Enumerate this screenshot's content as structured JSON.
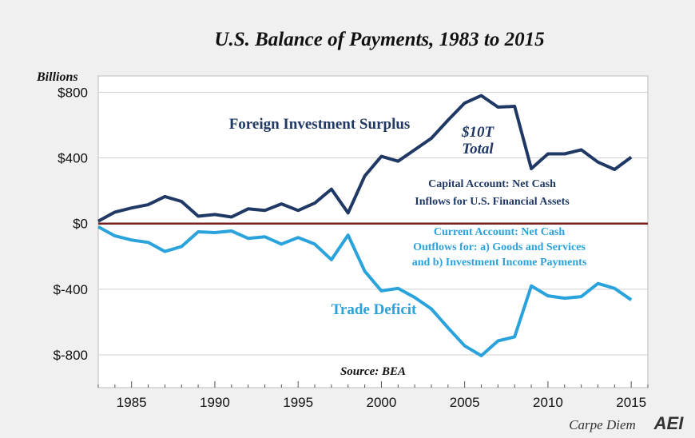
{
  "chart_data": {
    "type": "line",
    "title": "U.S. Balance of Payments, 1983 to 2015",
    "ylabel": "Billions",
    "xlabel": "",
    "ylim": [
      -1000,
      900
    ],
    "xlim": [
      1983,
      2016
    ],
    "yticks": [
      800,
      400,
      0,
      -400,
      -800
    ],
    "ytick_labels": [
      "$800",
      "$400",
      "$0",
      "$-400",
      "$-800"
    ],
    "xticks": [
      1985,
      1990,
      1995,
      2000,
      2005,
      2010,
      2015
    ],
    "xtick_labels": [
      "1985",
      "1990",
      "1995",
      "2000",
      "2005",
      "2010",
      "2015"
    ],
    "grid": true,
    "x": [
      1983,
      1984,
      1985,
      1986,
      1987,
      1988,
      1989,
      1990,
      1991,
      1992,
      1993,
      1994,
      1995,
      1996,
      1997,
      1998,
      1999,
      2000,
      2001,
      2002,
      2003,
      2004,
      2005,
      2006,
      2007,
      2008,
      2009,
      2010,
      2011,
      2012,
      2013,
      2014,
      2015
    ],
    "series": [
      {
        "name": "Foreign Investment Surplus",
        "color": "#1f3864",
        "values": [
          15,
          70,
          95,
          115,
          165,
          135,
          45,
          55,
          40,
          90,
          80,
          120,
          80,
          125,
          210,
          65,
          290,
          410,
          380,
          450,
          520,
          630,
          735,
          780,
          710,
          715,
          335,
          425,
          425,
          450,
          375,
          330,
          405
        ]
      },
      {
        "name": "Trade Deficit",
        "color": "#2aa2dc",
        "values": [
          -20,
          -75,
          -100,
          -115,
          -170,
          -140,
          -50,
          -55,
          -45,
          -90,
          -80,
          -125,
          -85,
          -125,
          -220,
          -70,
          -290,
          -410,
          -395,
          -450,
          -520,
          -635,
          -745,
          -805,
          -715,
          -690,
          -380,
          -440,
          -455,
          -445,
          -365,
          -395,
          -465
        ]
      }
    ],
    "zero_line_color": "#7a1f1f",
    "annotations": {
      "foreign_label": "Foreign Investment Surplus",
      "total_line1": "$10T",
      "total_line2": "Total",
      "capital_line1": "Capital Account: Net Cash",
      "capital_line2": "Inflows for U.S. Financial Assets",
      "current_line1": "Current Account: Net Cash",
      "current_line2": "Outflows for: a) Goods and Services",
      "current_line3": "and b) Investment Income Payments",
      "trade_label": "Trade Deficit",
      "source": "Source: BEA"
    }
  },
  "branding": {
    "text": "Carpe Diem",
    "logo": "AEI"
  }
}
